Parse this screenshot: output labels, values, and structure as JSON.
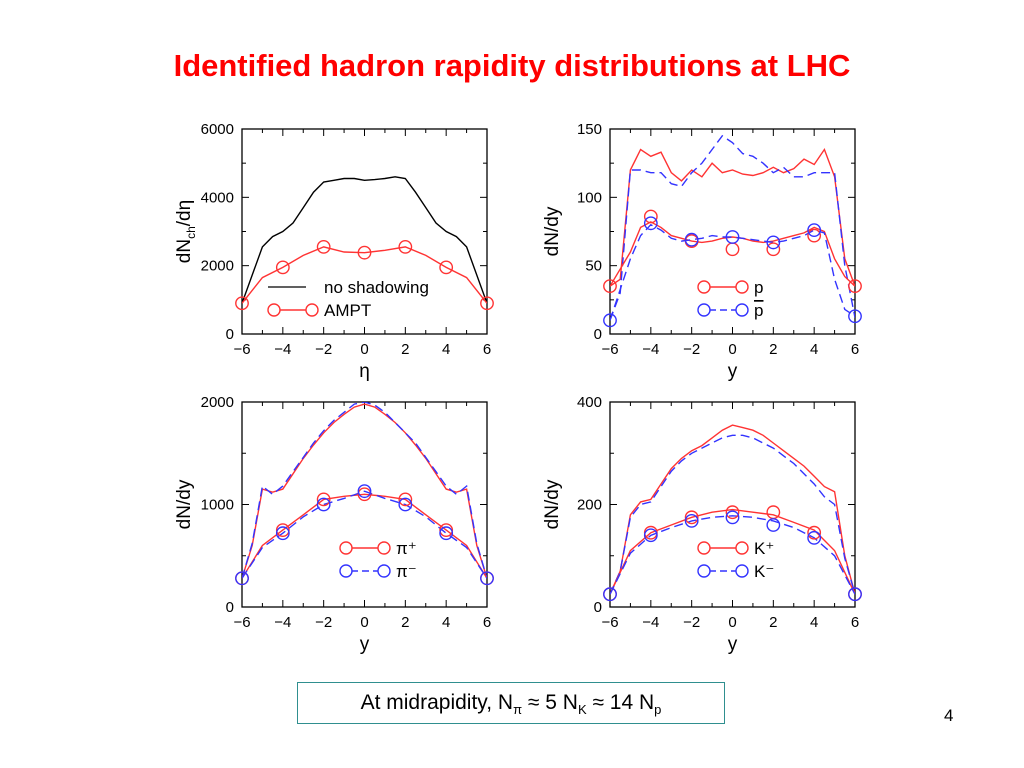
{
  "title": "Identified hadron rapidity distributions  at LHC",
  "note": {
    "prefix": "At midrapidity, N",
    "sub1": "π",
    "mid1": " ≈ 5 N",
    "sub2": "K",
    "mid2": " ≈ 14 N",
    "sub3": "p"
  },
  "page_number": "4",
  "colors": {
    "title": "#ff0000",
    "series_red": "#ff3333",
    "series_blue": "#3333ff",
    "series_black": "#000000",
    "note_border": "#2f8f8f"
  },
  "chart_data": [
    {
      "type": "line",
      "xlabel": "η",
      "ylabel": "dN",
      "ylabel_sub": "ch",
      "ylabel_tail": "/dη",
      "xlim": [
        -6,
        6
      ],
      "ylim": [
        0,
        6000
      ],
      "xticks": [
        "−6",
        "−4",
        "−2",
        "0",
        "2",
        "4",
        "6"
      ],
      "yticks": [
        "0",
        "2000",
        "4000",
        "6000"
      ],
      "legend": "bottom",
      "series": [
        {
          "name": "no shadowing",
          "style": "solid",
          "color": "#000000",
          "marker": "none",
          "x": [
            -6,
            -5,
            -4.5,
            -4,
            -3.5,
            -3,
            -2.5,
            -2,
            -1.5,
            -1,
            -0.5,
            0,
            0.5,
            1,
            1.5,
            2,
            2.5,
            3,
            3.5,
            4,
            4.5,
            5,
            6
          ],
          "y": [
            900,
            2550,
            2850,
            3000,
            3250,
            3700,
            4150,
            4450,
            4500,
            4550,
            4550,
            4500,
            4520,
            4550,
            4600,
            4550,
            4150,
            3700,
            3250,
            3000,
            2850,
            2550,
            900
          ]
        },
        {
          "name": "AMPT",
          "style": "solid",
          "color": "#ff3333",
          "marker": "circle",
          "x": [
            -6,
            -5,
            -4,
            -3,
            -2,
            -1,
            0,
            1,
            2,
            3,
            4,
            5,
            6
          ],
          "y": [
            900,
            1650,
            1950,
            2300,
            2550,
            2400,
            2380,
            2450,
            2550,
            2300,
            1950,
            1650,
            900
          ],
          "marker_x": [
            -6,
            -4,
            -2,
            0,
            2,
            4,
            6
          ],
          "marker_y": [
            900,
            1950,
            2550,
            2380,
            2550,
            1950,
            900
          ]
        }
      ]
    },
    {
      "type": "line",
      "xlabel": "y",
      "ylabel": "dN/dy",
      "xlim": [
        -6,
        6
      ],
      "ylim": [
        0,
        150
      ],
      "xticks": [
        "−6",
        "−4",
        "−2",
        "0",
        "2",
        "4",
        "6"
      ],
      "yticks": [
        "0",
        "50",
        "100",
        "150"
      ],
      "legend": "bottom-right",
      "series": [
        {
          "name": "p",
          "style": "solid",
          "color": "#ff3333",
          "marker": "circle",
          "x": [
            -6,
            -5.5,
            -5,
            -4.5,
            -4,
            -3.5,
            -3,
            -2.5,
            -2,
            -1.5,
            -1,
            -0.5,
            0,
            0.5,
            1,
            1.5,
            2,
            2.5,
            3,
            3.5,
            4,
            4.5,
            5,
            5.5,
            6
          ],
          "y": [
            35,
            40,
            120,
            135,
            130,
            133,
            118,
            112,
            120,
            115,
            125,
            118,
            120,
            117,
            116,
            118,
            122,
            118,
            121,
            128,
            124,
            135,
            115,
            55,
            35
          ],
          "marker_x": [
            -6,
            -4,
            -2,
            0,
            2,
            4,
            6
          ],
          "marker_y": [
            35,
            86,
            68,
            62,
            62,
            72,
            35
          ]
        },
        {
          "name": "p",
          "overline": true,
          "style": "dash",
          "color": "#3333ff",
          "marker": "circle",
          "x": [
            -6,
            -5.5,
            -5,
            -4.5,
            -4,
            -3.5,
            -3,
            -2.5,
            -2,
            -1.5,
            -1,
            -0.5,
            0,
            0.5,
            1,
            1.5,
            2,
            2.5,
            3,
            3.5,
            4,
            4.5,
            5,
            5.5,
            6
          ],
          "y": [
            10,
            30,
            120,
            120,
            118,
            118,
            110,
            108,
            118,
            125,
            135,
            145,
            140,
            132,
            130,
            125,
            118,
            122,
            115,
            115,
            118,
            118,
            118,
            50,
            12
          ],
          "marker_x": [
            -6,
            -4,
            -2,
            0,
            2,
            4,
            6
          ],
          "marker_y": [
            10,
            81,
            69,
            71,
            67,
            76,
            13
          ]
        },
        {
          "name": "",
          "style": "solid",
          "color": "#ff3333",
          "marker": "none",
          "x": [
            -6,
            -5,
            -4.5,
            -4,
            -3.5,
            -3,
            -2.5,
            -2,
            -1.5,
            -1,
            -0.5,
            0,
            0.5,
            1,
            1.5,
            2,
            2.5,
            3,
            3.5,
            4,
            4.5,
            5,
            5.5,
            6
          ],
          "y": [
            35,
            60,
            78,
            82,
            78,
            72,
            70,
            68,
            67,
            68,
            70,
            71,
            70,
            68,
            67,
            68,
            70,
            72,
            74,
            78,
            75,
            55,
            42,
            35
          ]
        },
        {
          "name": "",
          "style": "dash",
          "color": "#3333ff",
          "marker": "none",
          "x": [
            -6,
            -5,
            -4.5,
            -4,
            -3.5,
            -3,
            -2.5,
            -2,
            -1.5,
            -1,
            -0.5,
            0,
            0.5,
            1,
            1.5,
            2,
            2.5,
            3,
            3.5,
            4,
            4.5,
            5,
            5.5,
            6
          ],
          "y": [
            10,
            55,
            72,
            80,
            76,
            70,
            68,
            69,
            70,
            72,
            71,
            71,
            70,
            69,
            68,
            67,
            68,
            70,
            72,
            76,
            74,
            40,
            18,
            13
          ]
        }
      ]
    },
    {
      "type": "line",
      "xlabel": "y",
      "ylabel": "dN/dy",
      "xlim": [
        -6,
        6
      ],
      "ylim": [
        0,
        2000
      ],
      "xticks": [
        "−6",
        "−4",
        "−2",
        "0",
        "2",
        "4",
        "6"
      ],
      "yticks": [
        "0",
        "1000",
        "2000"
      ],
      "legend": "bottom-right",
      "series": [
        {
          "name": "π⁺",
          "style": "solid",
          "color": "#ff3333",
          "marker": "circle",
          "x": [
            -6,
            -5.5,
            -5,
            -4.5,
            -4,
            -3.5,
            -3,
            -2.5,
            -2,
            -1.5,
            -1,
            -0.5,
            0,
            0.5,
            1,
            1.5,
            2,
            2.5,
            3,
            3.5,
            4,
            4.5,
            5,
            5.5,
            6
          ],
          "y": [
            280,
            600,
            1150,
            1120,
            1150,
            1300,
            1450,
            1580,
            1700,
            1800,
            1880,
            1950,
            1980,
            1950,
            1880,
            1800,
            1700,
            1580,
            1450,
            1300,
            1150,
            1120,
            1150,
            600,
            280
          ],
          "marker_x": [
            -6,
            -4,
            -2,
            0,
            2,
            4,
            6
          ],
          "marker_y": [
            280,
            750,
            1050,
            1100,
            1050,
            750,
            280
          ]
        },
        {
          "name": "π⁻",
          "style": "dash",
          "color": "#3333ff",
          "marker": "circle",
          "x": [
            -6,
            -5.5,
            -5,
            -4.5,
            -4,
            -3.5,
            -3,
            -2.5,
            -2,
            -1.5,
            -1,
            -0.5,
            0,
            0.5,
            1,
            1.5,
            2,
            2.5,
            3,
            3.5,
            4,
            4.5,
            5,
            5.5,
            6
          ],
          "y": [
            280,
            620,
            1180,
            1100,
            1180,
            1320,
            1460,
            1600,
            1720,
            1820,
            1900,
            1980,
            2000,
            1970,
            1900,
            1800,
            1700,
            1600,
            1460,
            1320,
            1180,
            1100,
            1180,
            620,
            280
          ],
          "marker_x": [
            -6,
            -4,
            -2,
            0,
            2,
            4,
            6
          ],
          "marker_y": [
            280,
            720,
            1000,
            1130,
            1000,
            720,
            280
          ]
        },
        {
          "name": "",
          "style": "solid",
          "color": "#ff3333",
          "marker": "none",
          "x": [
            -6,
            -5,
            -4,
            -3,
            -2,
            -1,
            0,
            1,
            2,
            3,
            4,
            5,
            6
          ],
          "y": [
            280,
            600,
            750,
            900,
            1050,
            1080,
            1100,
            1080,
            1050,
            900,
            750,
            600,
            280
          ]
        },
        {
          "name": "",
          "style": "dash",
          "color": "#3333ff",
          "marker": "none",
          "x": [
            -6,
            -5,
            -4,
            -3,
            -2,
            -1,
            0,
            1,
            2,
            3,
            4,
            5,
            6
          ],
          "y": [
            280,
            580,
            720,
            880,
            1000,
            1060,
            1130,
            1060,
            1000,
            880,
            720,
            580,
            280
          ]
        }
      ]
    },
    {
      "type": "line",
      "xlabel": "y",
      "ylabel": "dN/dy",
      "xlim": [
        -6,
        6
      ],
      "ylim": [
        0,
        400
      ],
      "xticks": [
        "−6",
        "−4",
        "−2",
        "0",
        "2",
        "4",
        "6"
      ],
      "yticks": [
        "0",
        "200",
        "400"
      ],
      "legend": "bottom-right",
      "series": [
        {
          "name": "K⁺",
          "style": "solid",
          "color": "#ff3333",
          "marker": "circle",
          "x": [
            -6,
            -5.5,
            -5,
            -4.5,
            -4,
            -3.5,
            -3,
            -2.5,
            -2,
            -1.5,
            -1,
            -0.5,
            0,
            0.5,
            1,
            1.5,
            2,
            2.5,
            3,
            3.5,
            4,
            4.5,
            5,
            5.5,
            6
          ],
          "y": [
            25,
            70,
            180,
            205,
            210,
            240,
            270,
            290,
            305,
            315,
            330,
            345,
            355,
            350,
            345,
            335,
            320,
            305,
            290,
            275,
            255,
            235,
            225,
            100,
            25
          ],
          "marker_x": [
            -6,
            -4,
            -2,
            0,
            2,
            4,
            6
          ],
          "marker_y": [
            25,
            145,
            175,
            185,
            185,
            145,
            25
          ]
        },
        {
          "name": "K⁻",
          "style": "dash",
          "color": "#3333ff",
          "marker": "circle",
          "x": [
            -6,
            -5.5,
            -5,
            -4.5,
            -4,
            -3.5,
            -3,
            -2.5,
            -2,
            -1.5,
            -1,
            -0.5,
            0,
            0.5,
            1,
            1.5,
            2,
            2.5,
            3,
            3.5,
            4,
            4.5,
            5,
            5.5,
            6
          ],
          "y": [
            25,
            70,
            175,
            200,
            205,
            235,
            265,
            285,
            300,
            310,
            320,
            330,
            335,
            335,
            330,
            320,
            310,
            295,
            280,
            260,
            240,
            215,
            200,
            95,
            25
          ],
          "marker_x": [
            -6,
            -4,
            -2,
            0,
            2,
            4,
            6
          ],
          "marker_y": [
            25,
            140,
            168,
            175,
            160,
            135,
            25
          ]
        },
        {
          "name": "",
          "style": "solid",
          "color": "#ff3333",
          "marker": "none",
          "x": [
            -6,
            -5,
            -4,
            -3,
            -2,
            -1,
            0,
            1,
            2,
            3,
            4,
            5,
            6
          ],
          "y": [
            25,
            110,
            145,
            160,
            175,
            185,
            190,
            185,
            180,
            165,
            150,
            110,
            25
          ]
        },
        {
          "name": "",
          "style": "dash",
          "color": "#3333ff",
          "marker": "none",
          "x": [
            -6,
            -5,
            -4,
            -3,
            -2,
            -1,
            0,
            1,
            2,
            3,
            4,
            5,
            6
          ],
          "y": [
            25,
            105,
            140,
            155,
            168,
            175,
            178,
            175,
            168,
            155,
            135,
            100,
            25
          ]
        }
      ]
    }
  ]
}
